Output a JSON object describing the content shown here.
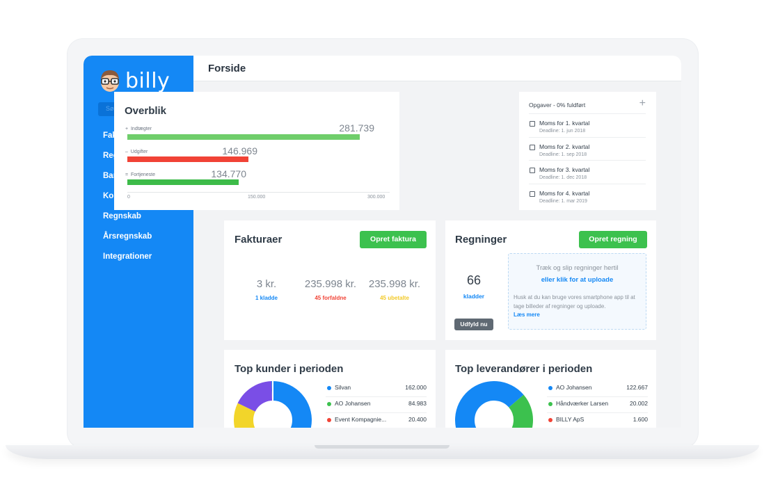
{
  "app": {
    "logo_text": "billy"
  },
  "sidebar": {
    "search_placeholder": "Søg",
    "items": [
      {
        "label": "Fakturaer"
      },
      {
        "label": "Regninger"
      },
      {
        "label": "Bank"
      },
      {
        "label": "Kontakter"
      },
      {
        "label": "Regnskab"
      },
      {
        "label": "Årsregnskab"
      },
      {
        "label": "Integrationer"
      }
    ]
  },
  "header": {
    "title": "Forside"
  },
  "overview": {
    "title": "Overblik",
    "rows": [
      {
        "sign": "+",
        "label": "Indtægter",
        "value": "281.739",
        "amount": 281739,
        "color": "#6fce6b"
      },
      {
        "sign": "–",
        "label": "Udgifter",
        "value": "146.969",
        "amount": 146969,
        "color": "#f14336"
      },
      {
        "sign": "=",
        "label": "Fortjeneste",
        "value": "134.770",
        "amount": 134770,
        "color": "#3dbb49"
      }
    ],
    "axis_max": 300000,
    "ticks": [
      "0",
      "150.000",
      "300.000"
    ]
  },
  "tasks": {
    "header": "Opgaver - 0% fuldført",
    "add_label": "+",
    "items": [
      {
        "name": "Moms for 1. kvartal",
        "deadline": "Deadline: 1. jun 2018"
      },
      {
        "name": "Moms for 2. kvartal",
        "deadline": "Deadline: 1. sep 2018"
      },
      {
        "name": "Moms for 3. kvartal",
        "deadline": "Deadline: 1. dec 2018"
      },
      {
        "name": "Moms for 4. kvartal",
        "deadline": "Deadline: 1. mar 2019"
      }
    ]
  },
  "invoices": {
    "title": "Fakturaer",
    "create_button": "Opret faktura",
    "stats": [
      {
        "value": "3 kr.",
        "label": "1 kladde",
        "color": "#1488f5"
      },
      {
        "value": "235.998 kr.",
        "label": "45 forfaldne",
        "color": "#f14336"
      },
      {
        "value": "235.998 kr.",
        "label": "45 ubetalte",
        "color": "#f2c927"
      }
    ]
  },
  "bills": {
    "title": "Regninger",
    "create_button": "Opret regning",
    "count": "66",
    "count_label": "kladder",
    "fill_button": "Udfyld nu",
    "drop_line1": "Træk og slip regninger hertil",
    "drop_line2": "eller klik for at uploade",
    "drop_hint": "Husk at du kan bruge vores smartphone app til at tage billeder af regninger og uploade.",
    "read_more": "Læs mere"
  },
  "top_customers": {
    "title": "Top kunder i perioden",
    "items": [
      {
        "name": "Silvan",
        "value": "162.000",
        "color": "#1488f5"
      },
      {
        "name": "AO Johansen",
        "value": "84.983",
        "color": "#3cc14e"
      },
      {
        "name": "Event Kompagnie...",
        "value": "20.400",
        "color": "#f14336"
      }
    ],
    "chart_colors": [
      "#1488f5",
      "#3cc14e",
      "#f2d52a",
      "#7a4ee6"
    ]
  },
  "top_suppliers": {
    "title": "Top leverandører i perioden",
    "items": [
      {
        "name": "AO Johansen",
        "value": "122.667",
        "color": "#1488f5"
      },
      {
        "name": "Håndværker Larsen",
        "value": "20.002",
        "color": "#3cc14e"
      },
      {
        "name": "BILLY ApS",
        "value": "1.600",
        "color": "#f14336"
      }
    ],
    "chart_colors": [
      "#1488f5",
      "#3cc14e",
      "#f14336"
    ]
  }
}
